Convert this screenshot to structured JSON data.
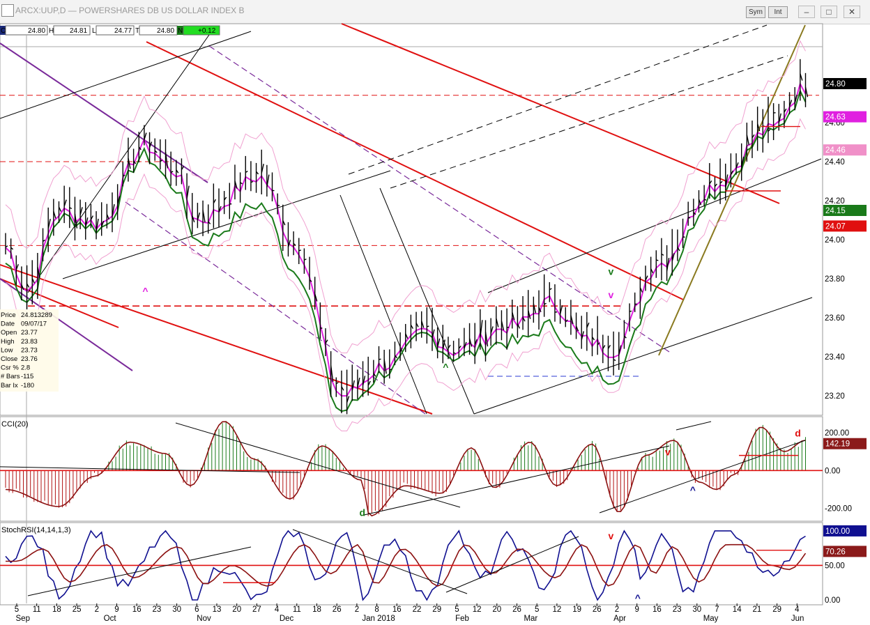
{
  "window": {
    "title": "ARCX:UUP,D — POWERSHARES DB US DOLLAR INDEX B",
    "sym_button": "Sym",
    "int_button": "Int"
  },
  "ohlc_bar": {
    "o_label": "O",
    "o": "24.80",
    "h_label": "H",
    "h": "24.81",
    "l_label": "L",
    "l": "24.77",
    "c_label": "T",
    "c": "24.80",
    "n_label": "N",
    "change": "+0.12"
  },
  "info_panel": [
    [
      "Price",
      "24.813289"
    ],
    [
      "Date",
      "09/07/17"
    ],
    [
      "Open",
      "23.77"
    ],
    [
      "High",
      "23.83"
    ],
    [
      "Low",
      "23.73"
    ],
    [
      "Close",
      "23.76"
    ],
    [
      "Csr %",
      "2.8"
    ],
    [
      "# Bars",
      "-115"
    ],
    [
      "Bar Ix",
      "-180"
    ]
  ],
  "colors": {
    "price": "#000000",
    "ma_short": "#e020e0",
    "ma_mid": "#1a7a1a",
    "band": "#f0a0d0",
    "trend_red": "#e01010",
    "channel_purple": "#7a2a9a",
    "cci_up": "#1a7a1a",
    "cci_down": "#b01010",
    "stoch_blue": "#101090",
    "stoch_red": "#8b1010"
  },
  "chart_data": [
    {
      "type": "bar",
      "panel": "price",
      "title": "ARCX:UUP,D — POWERSHARES DB US DOLLAR INDEX B",
      "ylim": [
        23.1,
        25.05
      ],
      "yticks": [
        "24.60",
        "24.40",
        "24.20",
        "24.00",
        "23.80",
        "23.60",
        "23.40",
        "23.20"
      ],
      "price_labels": [
        {
          "value": "24.80",
          "bg": "#000000",
          "fg": "#ffffff"
        },
        {
          "value": "24.63",
          "bg": "#e020e0",
          "fg": "#ffffff"
        },
        {
          "value": "24.46",
          "bg": "#f090c8",
          "fg": "#ffffff"
        },
        {
          "value": "24.15",
          "bg": "#1a7a1a",
          "fg": "#ffffff"
        },
        {
          "value": "24.07",
          "bg": "#e01010",
          "fg": "#ffffff"
        }
      ],
      "annotations": [
        {
          "text": "^",
          "color": "#e020e0",
          "x": 77,
          "y": 23.72
        },
        {
          "text": "^",
          "color": "#1a7a1a",
          "x": 246,
          "y": 23.33
        },
        {
          "text": "v",
          "color": "#1a7a1a",
          "x": 339,
          "y": 23.82
        },
        {
          "text": "v",
          "color": "#e020e0",
          "x": 339,
          "y": 23.7
        }
      ]
    },
    {
      "type": "bar",
      "panel": "CCI",
      "title": "CCI(20)",
      "ylim": [
        -260,
        270
      ],
      "yticks": [
        "200.00",
        "0.00",
        "-200.00"
      ],
      "last_value": "142.19",
      "annotations": [
        {
          "text": "d",
          "color": "#1a7a1a",
          "x": 199,
          "y": -240
        },
        {
          "text": "v",
          "color": "#e01010",
          "x": 371,
          "y": 80
        },
        {
          "text": "^",
          "color": "#101090",
          "x": 385,
          "y": -120
        },
        {
          "text": "d",
          "color": "#e01010",
          "x": 444,
          "y": 180
        }
      ]
    },
    {
      "type": "line",
      "panel": "StochRSI",
      "title": "StochRSI(14,14,1,3)",
      "ylim": [
        -5,
        110
      ],
      "yticks": [
        "100.00",
        "50.00",
        "0.00"
      ],
      "last_value": "100.00",
      "signal_value": "70.26",
      "annotations": [
        {
          "text": "v",
          "color": "#e01010",
          "x": 339,
          "y": 88
        },
        {
          "text": "^",
          "color": "#101090",
          "x": 354,
          "y": -2
        }
      ]
    }
  ],
  "x_axis": {
    "day_ticks": [
      "5",
      "11",
      "18",
      "25",
      "2",
      "9",
      "16",
      "23",
      "30",
      "6",
      "13",
      "20",
      "27",
      "4",
      "11",
      "18",
      "26",
      "2",
      "8",
      "16",
      "22",
      "29",
      "5",
      "12",
      "20",
      "26",
      "5",
      "12",
      "19",
      "26",
      "2",
      "9",
      "16",
      "23",
      "30",
      "7",
      "14",
      "21",
      "29",
      "4"
    ],
    "months": [
      {
        "label": "Sep",
        "x": 1
      },
      {
        "label": "Oct",
        "x": 51
      },
      {
        "label": "Nov",
        "x": 104
      },
      {
        "label": "Dec",
        "x": 151
      },
      {
        "label": "Jan 2018",
        "x": 198
      },
      {
        "label": "Feb",
        "x": 251
      },
      {
        "label": "Mar",
        "x": 290
      },
      {
        "label": "Apr",
        "x": 341
      },
      {
        "label": "May",
        "x": 392
      },
      {
        "label": "Jun",
        "x": 442
      }
    ]
  }
}
